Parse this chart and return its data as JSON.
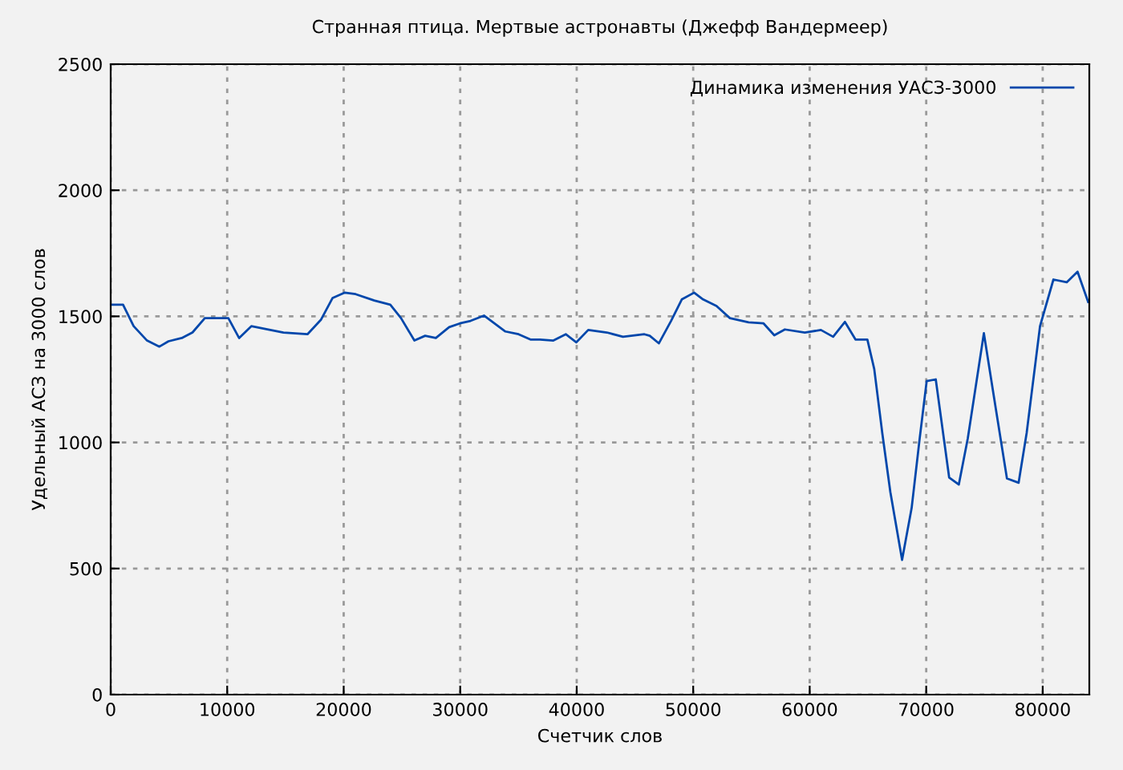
{
  "chart_data": {
    "type": "line",
    "title": "Странная птица. Мертвые астронавты (Джефф Вандермеер)",
    "xlabel": "Счетчик слов",
    "ylabel": "Удельный АСЗ на 3000 слов",
    "xlim": [
      0,
      84000
    ],
    "ylim": [
      0,
      2500
    ],
    "xticks": [
      0,
      10000,
      20000,
      30000,
      40000,
      50000,
      60000,
      70000,
      80000
    ],
    "yticks": [
      0,
      500,
      1000,
      1500,
      2000,
      2500
    ],
    "grid": true,
    "legend": "top right",
    "line_style": "solid",
    "marker": "none",
    "series": [
      {
        "name": "Динамика изменения УАСЗ-3000",
        "color": "#0047ab",
        "x": [
          0,
          1060,
          1970,
          3120,
          4180,
          4960,
          6100,
          7020,
          8080,
          10100,
          11020,
          12070,
          14830,
          16890,
          18040,
          19050,
          20100,
          21020,
          22620,
          24000,
          24920,
          26070,
          26990,
          27910,
          29050,
          29970,
          30890,
          32040,
          33880,
          35010,
          36030,
          36850,
          38000,
          39060,
          39970,
          40990,
          42590,
          43970,
          45810,
          46270,
          47050,
          48100,
          49020,
          50080,
          50850,
          52000,
          53150,
          54760,
          56040,
          56960,
          57870,
          59580,
          60960,
          62010,
          63020,
          63930,
          64950,
          65540,
          66230,
          66920,
          67930,
          68750,
          69440,
          70040,
          70820,
          71970,
          72800,
          73570,
          74950,
          75870,
          76930,
          77930,
          78620,
          79770,
          80920,
          82060,
          82990,
          83900
        ],
        "values": [
          1546,
          1546,
          1461,
          1404,
          1380,
          1401,
          1414,
          1436,
          1493,
          1493,
          1414,
          1461,
          1436,
          1429,
          1486,
          1573,
          1594,
          1588,
          1563,
          1546,
          1493,
          1404,
          1423,
          1414,
          1457,
          1472,
          1482,
          1503,
          1440,
          1429,
          1408,
          1408,
          1404,
          1429,
          1397,
          1446,
          1436,
          1419,
          1429,
          1423,
          1393,
          1482,
          1567,
          1594,
          1567,
          1541,
          1493,
          1476,
          1472,
          1425,
          1448,
          1436,
          1446,
          1419,
          1478,
          1408,
          1408,
          1291,
          1037,
          804,
          534,
          740,
          1016,
          1243,
          1250,
          861,
          833,
          1016,
          1433,
          1164,
          857,
          840,
          1037,
          1461,
          1646,
          1635,
          1677,
          1557
        ]
      }
    ]
  }
}
